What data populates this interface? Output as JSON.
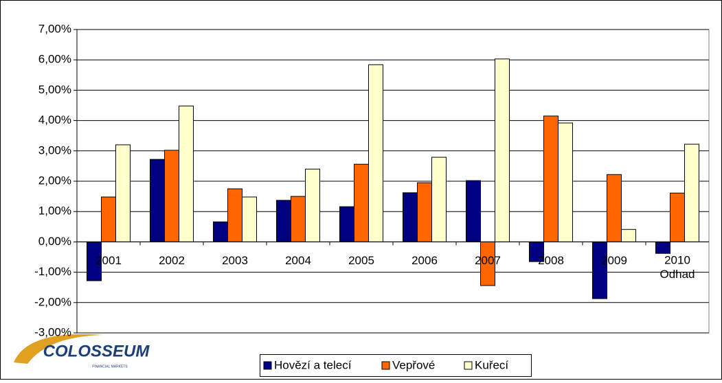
{
  "chart_data": {
    "type": "bar",
    "categories": [
      "2001",
      "2002",
      "2003",
      "2004",
      "2005",
      "2006",
      "2007",
      "2008",
      "2009",
      "2010\nOdhad"
    ],
    "series": [
      {
        "name": "Hovězí a telecí",
        "color": "#000080",
        "values": [
          -1.28,
          2.72,
          0.66,
          1.37,
          1.16,
          1.62,
          2.02,
          -0.65,
          -1.87,
          -0.38
        ]
      },
      {
        "name": "Vepřové",
        "color": "#ff6600",
        "values": [
          1.48,
          3.02,
          1.75,
          1.5,
          2.56,
          1.95,
          -1.44,
          4.15,
          2.22,
          1.61
        ]
      },
      {
        "name": "Kuřecí",
        "color": "#ffffcc",
        "values": [
          3.2,
          4.48,
          1.48,
          2.4,
          5.84,
          2.79,
          6.03,
          3.92,
          0.41,
          3.22
        ]
      }
    ],
    "ylim": [
      -3,
      7
    ],
    "yticks": [
      {
        "value": -3,
        "label": "-3,00%"
      },
      {
        "value": -2,
        "label": "-2,00%"
      },
      {
        "value": -1,
        "label": "-1,00%"
      },
      {
        "value": 0,
        "label": "0,00%"
      },
      {
        "value": 1,
        "label": "1,00%"
      },
      {
        "value": 2,
        "label": "2,00%"
      },
      {
        "value": 3,
        "label": "3,00%"
      },
      {
        "value": 4,
        "label": "4,00%"
      },
      {
        "value": 5,
        "label": "5,00%"
      },
      {
        "value": 6,
        "label": "6,00%"
      },
      {
        "value": 7,
        "label": "7,00%"
      }
    ],
    "grid": true,
    "legend": "bottom",
    "logo": "COLOSSEUM",
    "logo_subtitle": "FINANCIAL MARKETS"
  }
}
